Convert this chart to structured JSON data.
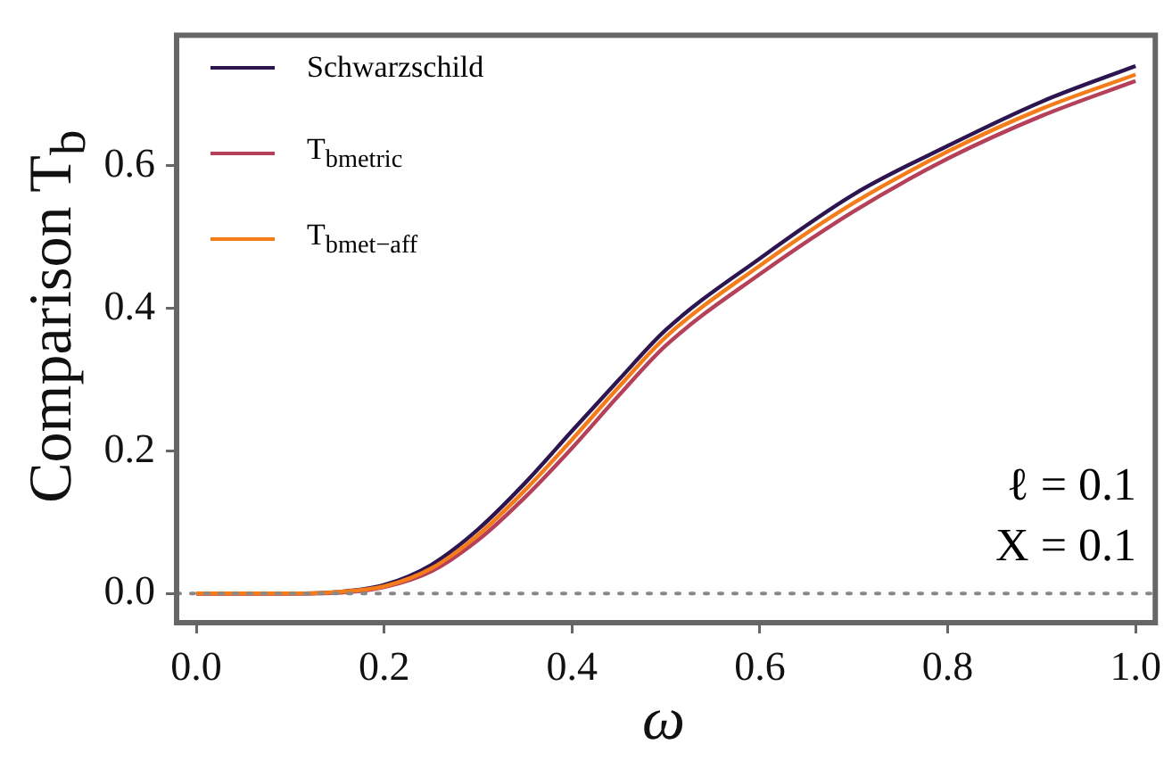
{
  "chart_data": {
    "type": "line",
    "xlabel": "ω",
    "ylabel": "Comparison T$_{b}$",
    "xlim": [
      -0.021,
      1.021
    ],
    "ylim": [
      -0.041,
      0.783
    ],
    "xticks": [
      {
        "value": 0,
        "label": "0.0"
      },
      0.2,
      0.4,
      0.6,
      0.8,
      {
        "value": 1,
        "label": "1.0"
      }
    ],
    "yticks": [
      {
        "value": 0,
        "label": "0.0"
      },
      0.2,
      0.4,
      0.6
    ],
    "x": [
      0,
      0.1,
      0.15,
      0.2,
      0.25,
      0.3,
      0.35,
      0.4,
      0.45,
      0.5,
      0.6,
      0.7,
      0.8,
      0.9,
      1.0
    ],
    "series": [
      {
        "name": "Schwarzschild",
        "color": "#2d1650",
        "values": [
          0,
          0,
          0.002,
          0.012,
          0.04,
          0.09,
          0.155,
          0.228,
          0.3,
          0.37,
          0.47,
          0.56,
          0.628,
          0.69,
          0.74
        ]
      },
      {
        "name": "T$_{b}$$_{metric}$",
        "color": "#b5405a",
        "values": [
          0,
          0,
          0.001,
          0.009,
          0.031,
          0.075,
          0.135,
          0.204,
          0.278,
          0.348,
          0.448,
          0.536,
          0.61,
          0.67,
          0.719
        ]
      },
      {
        "name": "T$_{b}$$_{met−aff}$",
        "color": "#f57c1a",
        "values": [
          0,
          0,
          0.002,
          0.01,
          0.035,
          0.082,
          0.145,
          0.216,
          0.29,
          0.36,
          0.46,
          0.548,
          0.62,
          0.68,
          0.728
        ]
      }
    ],
    "ref_lines": [
      {
        "axis": "y",
        "value": 0,
        "color": "#888888",
        "line_style": "dotted"
      }
    ],
    "annotations": [
      "ℓ = 0.1",
      "X = 0.1"
    ],
    "legend": "top left",
    "grid": false,
    "marker": "none",
    "line_style": "solid"
  }
}
